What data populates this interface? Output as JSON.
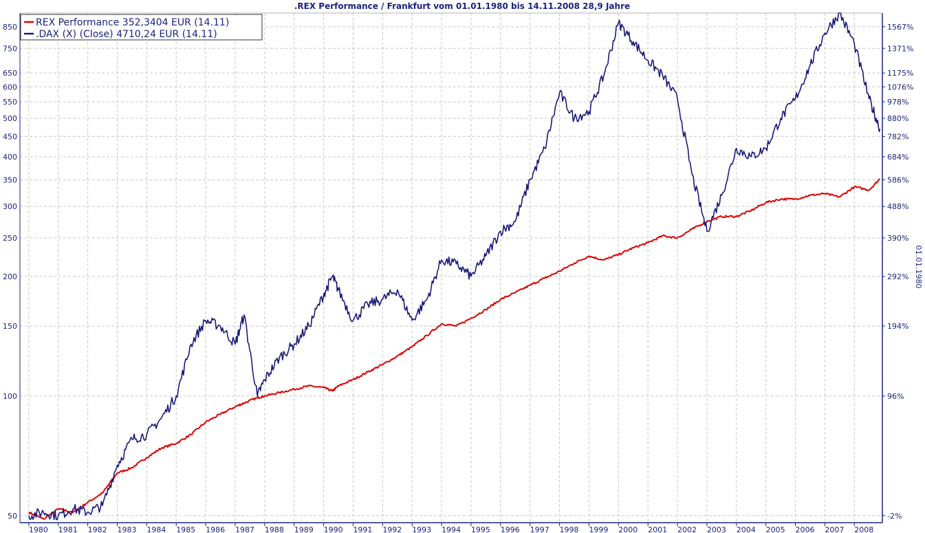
{
  "chart_data": {
    "type": "line",
    "title": ".REX Performance / Frankfurt vom 01.01.1980 bis 14.11.2008 28,9 Jahre",
    "side_label": "01.01.1980",
    "x": [
      1980,
      1980.5,
      1981,
      1981.5,
      1982,
      1982.5,
      1983,
      1983.5,
      1984,
      1984.5,
      1985,
      1985.5,
      1986,
      1986.5,
      1987,
      1987.3,
      1987.75,
      1988,
      1988.5,
      1989,
      1989.5,
      1990,
      1990.3,
      1990.5,
      1991,
      1991.5,
      1992,
      1992.5,
      1993,
      1993.5,
      1994,
      1994.5,
      1995,
      1995.5,
      1996,
      1996.5,
      1997,
      1997.5,
      1998,
      1998.5,
      1999,
      1999.5,
      2000,
      2000.5,
      2001,
      2001.5,
      2002,
      2002.5,
      2003,
      2003.5,
      2004,
      2004.5,
      2005,
      2005.5,
      2006,
      2006.5,
      2007,
      2007.5,
      2008,
      2008.5,
      2008.87
    ],
    "x_ticks": [
      "1980",
      "1981",
      "1982",
      "1983",
      "1984",
      "1985",
      "1986",
      "1987",
      "1988",
      "1989",
      "1990",
      "1991",
      "1992",
      "1993",
      "1994",
      "1995",
      "1996",
      "1997",
      "1998",
      "1999",
      "2000",
      "2001",
      "2002",
      "2003",
      "2004",
      "2005",
      "2006",
      "2007",
      "2008"
    ],
    "y_ticks_left": [
      50,
      100,
      150,
      200,
      250,
      300,
      350,
      400,
      450,
      500,
      550,
      600,
      650,
      750,
      850
    ],
    "y_ticks_right": [
      "-2%",
      "96%",
      "194%",
      "292%",
      "390%",
      "488%",
      "586%",
      "684%",
      "782%",
      "880%",
      "978%",
      "1076%",
      "1175%",
      "1371%",
      "1567%"
    ],
    "y_scale": "log",
    "ylim": [
      48,
      920
    ],
    "grid": true,
    "legend_position": "top-left",
    "series": [
      {
        "name": "REX Performance 352,3404 EUR (14.11)",
        "color": "#dd0000",
        "values": [
          51,
          49,
          52,
          51,
          54,
          57,
          64,
          66,
          70,
          74,
          76,
          80,
          86,
          90,
          94,
          96,
          99,
          100,
          102,
          104,
          106,
          105,
          103,
          106,
          110,
          115,
          120,
          126,
          133,
          142,
          152,
          150,
          157,
          165,
          175,
          182,
          190,
          198,
          206,
          216,
          225,
          220,
          227,
          236,
          243,
          253,
          250,
          263,
          275,
          283,
          283,
          293,
          307,
          313,
          313,
          320,
          323,
          317,
          336,
          330,
          352
        ]
      },
      {
        "name": ".DAX (X) (Close) 4710,24 EUR (14.11)",
        "color": "#1a1a78",
        "values": [
          50,
          51,
          50,
          52,
          51,
          53,
          67,
          78,
          80,
          88,
          100,
          135,
          155,
          150,
          135,
          160,
          100,
          110,
          125,
          135,
          150,
          180,
          200,
          185,
          155,
          170,
          175,
          185,
          155,
          175,
          220,
          215,
          200,
          225,
          260,
          275,
          350,
          420,
          580,
          500,
          520,
          640,
          870,
          780,
          700,
          640,
          560,
          360,
          260,
          320,
          420,
          400,
          420,
          500,
          560,
          680,
          820,
          920,
          770,
          560,
          470
        ]
      }
    ]
  }
}
